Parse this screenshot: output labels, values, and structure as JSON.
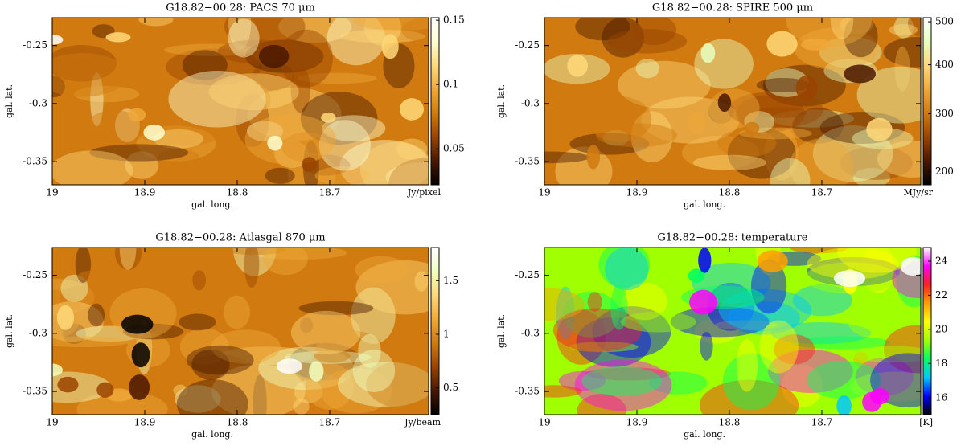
{
  "chart_data": [
    {
      "type": "image",
      "title": "G18.82−00.28: PACS 70 μm",
      "xlabel": "gal. long.",
      "ylabel": "gal. lat.",
      "xlim": [
        19,
        18.593
      ],
      "xticks": [
        19,
        18.9,
        18.8,
        18.7
      ],
      "ylim": [
        -0.37,
        -0.226
      ],
      "yticks": [
        -0.35,
        -0.3,
        -0.25
      ],
      "colorbar": {
        "label": "Jy/pixel",
        "scale": "linear",
        "lim": [
          0.022,
          0.152
        ],
        "ticks": [
          0.05,
          0.1,
          0.15
        ],
        "colors": [
          "#000000",
          "#4a1800",
          "#9a4400",
          "#d07a10",
          "#f0a838",
          "#ffd878",
          "#ffffd0",
          "#ffffff"
        ]
      }
    },
    {
      "type": "image",
      "title": "G18.82−00.28: SPIRE 500 μm",
      "xlabel": "gal. long.",
      "ylabel": "gal. lat.",
      "xlim": [
        19,
        18.593
      ],
      "xticks": [
        19,
        18.9,
        18.8,
        18.7
      ],
      "ylim": [
        -0.37,
        -0.226
      ],
      "yticks": [
        -0.35,
        -0.3,
        -0.25
      ],
      "colorbar": {
        "label": "MJy/sr",
        "scale": "sqrt",
        "lim": [
          180,
          510
        ],
        "ticks": [
          200,
          300,
          400,
          500
        ],
        "colors": [
          "#000000",
          "#4a1800",
          "#9a4400",
          "#d07a10",
          "#f0a838",
          "#ffd878",
          "#e8ffc0",
          "#ffffff"
        ]
      }
    },
    {
      "type": "image",
      "title": "G18.82−00.28: Atlasgal 870 μm",
      "xlabel": "gal. long.",
      "ylabel": "gal. lat.",
      "xlim": [
        19,
        18.593
      ],
      "xticks": [
        19,
        18.9,
        18.8,
        18.7
      ],
      "ylim": [
        -0.37,
        -0.226
      ],
      "yticks": [
        -0.35,
        -0.3,
        -0.25
      ],
      "colorbar": {
        "label": "Jy/beam",
        "scale": "linear",
        "lim": [
          0.25,
          1.81
        ],
        "ticks": [
          0.5,
          1,
          1.5
        ],
        "colors": [
          "#000000",
          "#4a1800",
          "#9a4400",
          "#d07a10",
          "#f0a838",
          "#ffd878",
          "#f0ffc0",
          "#ffffff"
        ]
      }
    },
    {
      "type": "image",
      "title": "G18.82−00.28: temperature",
      "xlabel": "gal. long.",
      "ylabel": "gal. lat.",
      "xlim": [
        19,
        18.593
      ],
      "xticks": [
        19,
        18.9,
        18.8,
        18.7
      ],
      "ylim": [
        -0.37,
        -0.226
      ],
      "yticks": [
        -0.35,
        -0.3,
        -0.25
      ],
      "colorbar": {
        "label": "[K]",
        "scale": "linear",
        "lim": [
          15,
          24.8
        ],
        "ticks": [
          16,
          18,
          20,
          22,
          24
        ],
        "colors": [
          "#000000",
          "#0000ff",
          "#00c8ff",
          "#00ff60",
          "#a0ff00",
          "#ffff00",
          "#ffa000",
          "#ff2020",
          "#ff00ff",
          "#ffffff"
        ]
      }
    }
  ]
}
